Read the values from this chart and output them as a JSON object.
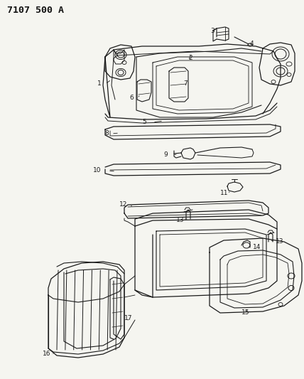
{
  "title": "7107 500 A",
  "bg_color": "#f5f5f0",
  "title_color": "#111111",
  "line_color": "#1a1a1a",
  "title_fontsize": 9.5,
  "figsize": [
    4.28,
    5.33
  ],
  "dpi": 100
}
